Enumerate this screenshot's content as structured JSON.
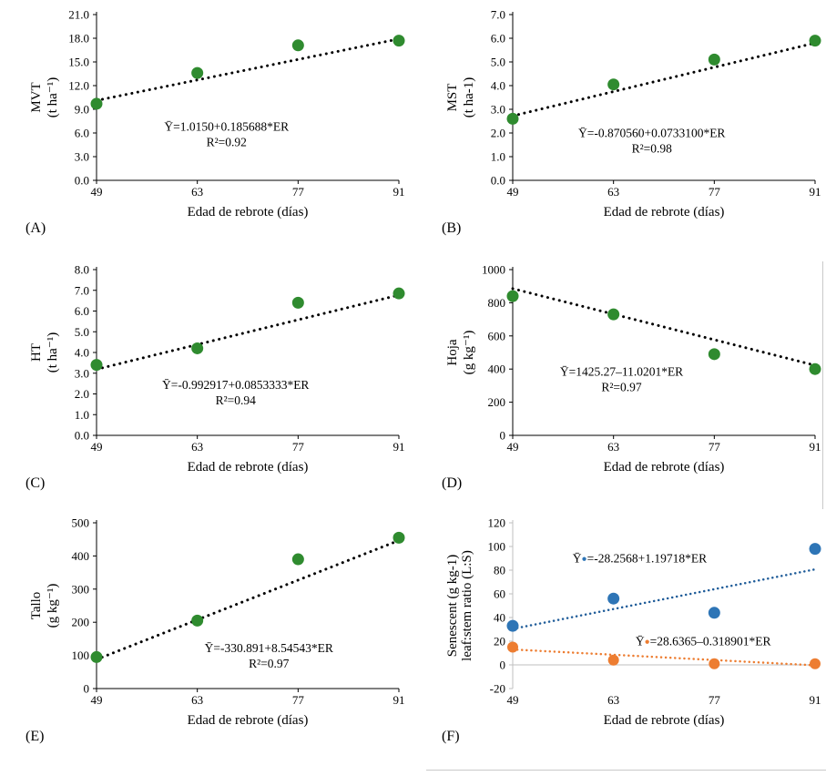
{
  "page": {
    "background": "#ffffff"
  },
  "shared": {
    "x_axis_title": "Edad de rebrote (días)",
    "x_ticks": [
      49,
      63,
      77,
      91
    ]
  },
  "colors": {
    "green_point": "#2f8b2f",
    "blue_point": "#2e75b6",
    "orange_point": "#ed7d31",
    "trend_black": "#000000",
    "trend_blue": "#1f5c99",
    "trend_orange": "#ed7d31",
    "gray_axis": "#bfbfbf"
  },
  "chart_data": [
    {
      "type": "scatter",
      "panel_label": "(A)",
      "ylabel_lines": [
        "MVT",
        "(t ha⁻¹)"
      ],
      "ylabel_font": 14,
      "xlabel": "Edad de rebrote  (días)",
      "xlim": [
        49,
        91
      ],
      "x_ticks": [
        49,
        63,
        77,
        91
      ],
      "ylim": [
        0,
        21
      ],
      "ytick_values": [
        0,
        3,
        6,
        9,
        12,
        15,
        18,
        21
      ],
      "ytick_labels": [
        "0.0",
        "3.0",
        "6.0",
        "9.0",
        "12.0",
        "15.0",
        "18.0",
        "21.0"
      ],
      "axis_color": "#000000",
      "zero_line": false,
      "series": [
        {
          "name": "MVT",
          "point_color": "#2f8b2f",
          "point_radius": 6.5,
          "x": [
            49,
            63,
            77,
            91
          ],
          "y": [
            9.7,
            13.6,
            17.1,
            17.7
          ],
          "trend": {
            "intercept": 1.015,
            "slope": 0.185688,
            "color": "#000000",
            "width": 3,
            "gap": 6.5,
            "x_range": [
              49,
              91
            ]
          },
          "equation": {
            "lines": [
              "Ȳ=1.0150+0.185688*ER",
              "R²=0.92"
            ],
            "pos": [
              0.43,
              0.7
            ]
          }
        }
      ]
    },
    {
      "type": "scatter",
      "panel_label": "(B)",
      "ylabel_lines": [
        "MST",
        "(t ha-1)"
      ],
      "ylabel_font": 14,
      "xlabel": "Edad de rebrote (días)",
      "xlim": [
        49,
        91
      ],
      "x_ticks": [
        49,
        63,
        77,
        91
      ],
      "ylim": [
        0,
        7
      ],
      "ytick_values": [
        0,
        1,
        2,
        3,
        4,
        5,
        6,
        7
      ],
      "ytick_labels": [
        "0.0",
        "1.0",
        "2.0",
        "3.0",
        "4.0",
        "5.0",
        "6.0",
        "7.0"
      ],
      "axis_color": "#000000",
      "zero_line": false,
      "series": [
        {
          "name": "MST",
          "point_color": "#2f8b2f",
          "point_radius": 6.5,
          "x": [
            49,
            63,
            77,
            91
          ],
          "y": [
            2.6,
            4.05,
            5.1,
            5.9
          ],
          "trend": {
            "intercept": -0.87056,
            "slope": 0.07331,
            "color": "#000000",
            "width": 3,
            "gap": 6.5,
            "x_range": [
              49,
              91
            ]
          },
          "equation": {
            "lines": [
              "Ȳ=-0.870560+0.0733100*ER",
              "R²=0.98"
            ],
            "pos": [
              0.46,
              0.74
            ]
          }
        }
      ]
    },
    {
      "type": "scatter",
      "panel_label": "(C)",
      "ylabel_lines": [
        "HT",
        "(t ha⁻¹)"
      ],
      "ylabel_font": 14,
      "xlabel": "Edad de rebrote (días)",
      "xlim": [
        49,
        91
      ],
      "x_ticks": [
        49,
        63,
        77,
        91
      ],
      "ylim": [
        0,
        8
      ],
      "ytick_values": [
        0,
        1,
        2,
        3,
        4,
        5,
        6,
        7,
        8
      ],
      "ytick_labels": [
        "0.0",
        "1.0",
        "2.0",
        "3.0",
        "4.0",
        "5.0",
        "6.0",
        "7.0",
        "8.0"
      ],
      "axis_color": "#000000",
      "zero_line": false,
      "series": [
        {
          "name": "HT",
          "point_color": "#2f8b2f",
          "point_radius": 6.5,
          "x": [
            49,
            63,
            77,
            91
          ],
          "y": [
            3.4,
            4.2,
            6.4,
            6.85
          ],
          "trend": {
            "intercept": -0.992917,
            "slope": 0.0853333,
            "color": "#000000",
            "width": 3,
            "gap": 6.5,
            "x_range": [
              49,
              91
            ]
          },
          "equation": {
            "lines": [
              "Ȳ=-0.992917+0.0853333*ER",
              "R²=0.94"
            ],
            "pos": [
              0.46,
              0.72
            ]
          }
        }
      ]
    },
    {
      "type": "scatter",
      "panel_label": "(D)",
      "ylabel_lines": [
        "Hoja",
        "(g kg⁻¹)"
      ],
      "ylabel_font": 14,
      "xlabel": "Edad de rebrote (días)",
      "xlim": [
        49,
        91
      ],
      "x_ticks": [
        49,
        63,
        77,
        91
      ],
      "ylim": [
        0,
        1000
      ],
      "ytick_values": [
        0,
        200,
        400,
        600,
        800,
        1000
      ],
      "ytick_labels": [
        "0",
        "200",
        "400",
        "600",
        "800",
        "1000"
      ],
      "axis_color": "#000000",
      "zero_line": false,
      "series": [
        {
          "name": "Hoja",
          "point_color": "#2f8b2f",
          "point_radius": 6.5,
          "x": [
            49,
            63,
            77,
            91
          ],
          "y": [
            840,
            730,
            490,
            400
          ],
          "trend": {
            "intercept": 1425.27,
            "slope": -11.0201,
            "color": "#000000",
            "width": 3,
            "gap": 6.5,
            "x_range": [
              49,
              91
            ]
          },
          "equation": {
            "lines": [
              "Ȳ=1425.27–11.0201*ER",
              "R²=0.97"
            ],
            "pos": [
              0.36,
              0.64
            ]
          }
        }
      ]
    },
    {
      "type": "scatter",
      "panel_label": "(E)",
      "ylabel_lines": [
        "Tallo",
        "(g kg⁻¹)"
      ],
      "ylabel_font": 14,
      "xlabel": "Edad de rebrote (días)",
      "xlim": [
        49,
        91
      ],
      "x_ticks": [
        49,
        63,
        77,
        91
      ],
      "ylim": [
        0,
        500
      ],
      "ytick_values": [
        0,
        100,
        200,
        300,
        400,
        500
      ],
      "ytick_labels": [
        "0",
        "100",
        "200",
        "300",
        "400",
        "500"
      ],
      "axis_color": "#000000",
      "zero_line": false,
      "series": [
        {
          "name": "Tallo",
          "point_color": "#2f8b2f",
          "point_radius": 6.5,
          "x": [
            49,
            63,
            77,
            91
          ],
          "y": [
            95,
            205,
            390,
            455
          ],
          "trend": {
            "intercept": -330.891,
            "slope": 8.54543,
            "color": "#000000",
            "width": 3,
            "gap": 6.5,
            "x_range": [
              49,
              91
            ]
          },
          "equation": {
            "lines": [
              "Ȳ=-330.891+8.54543*ER",
              "R²=0.97"
            ],
            "pos": [
              0.57,
              0.78
            ]
          }
        }
      ]
    },
    {
      "type": "scatter",
      "panel_label": "(F)",
      "ylabel_lines": [
        "Senescent  (g kg-1)",
        "leaf:stem ratio (L:S)"
      ],
      "ylabel_font": 12,
      "xlabel": "Edad de rebrote (días)",
      "xlim": [
        49,
        91
      ],
      "x_ticks": [
        49,
        63,
        77,
        91
      ],
      "ylim": [
        -20,
        120
      ],
      "ytick_values": [
        -20,
        0,
        20,
        40,
        60,
        80,
        100,
        120
      ],
      "ytick_labels": [
        "-20",
        "0",
        "20",
        "40",
        "60",
        "80",
        "100",
        "120"
      ],
      "axis_color": "#bfbfbf",
      "bottom_axis": false,
      "zero_line": true,
      "series": [
        {
          "name": "Senescent leaf",
          "point_color": "#2e75b6",
          "point_radius": 6.5,
          "x": [
            49,
            63,
            77,
            91
          ],
          "y": [
            33,
            56,
            44,
            98
          ],
          "trend": {
            "intercept": -28.2568,
            "slope": 1.19718,
            "color": "#1f5c99",
            "width": 2.5,
            "gap": 5,
            "x_range": [
              49,
              91
            ]
          },
          "equation": {
            "prefix": "Ȳ",
            "marker_color": "#2e75b6",
            "suffix": "=-28.2568+1.19718*ER",
            "pos": [
              0.42,
              0.24
            ]
          }
        },
        {
          "name": "Leaf:stem ratio",
          "point_color": "#ed7d31",
          "point_radius": 6,
          "x": [
            49,
            63,
            77,
            91
          ],
          "y": [
            15,
            4,
            1,
            1
          ],
          "trend": {
            "intercept": 28.6365,
            "slope": -0.318901,
            "color": "#ed7d31",
            "width": 2.5,
            "gap": 5,
            "x_range": [
              49,
              91
            ]
          },
          "equation": {
            "prefix": "Ȳ",
            "marker_color": "#ed7d31",
            "suffix": "=28.6365–0.318901*ER",
            "pos": [
              0.63,
              0.74
            ]
          }
        }
      ]
    }
  ]
}
